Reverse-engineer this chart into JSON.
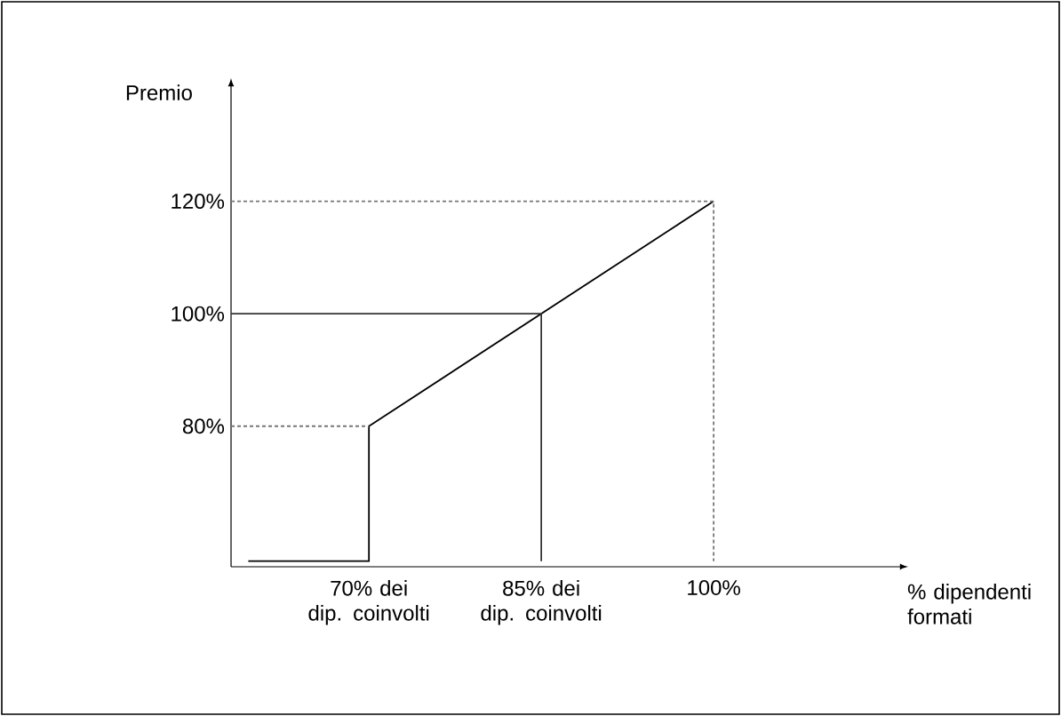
{
  "chart_data": {
    "type": "line",
    "xlabel": "% dipendenti formati",
    "ylabel": "Premio",
    "xlim": [
      58,
      116
    ],
    "ylim": [
      55,
      140
    ],
    "xticks": [
      {
        "value": 70,
        "label": "70% dei dip. coinvolti"
      },
      {
        "value": 85,
        "label": "85% dei dip. coinvolti"
      },
      {
        "value": 100,
        "label": "100%"
      }
    ],
    "yticks": [
      {
        "value": 80,
        "label": "80%"
      },
      {
        "value": 100,
        "label": "100%"
      },
      {
        "value": 120,
        "label": "120%"
      }
    ],
    "series": [
      {
        "color": "#000000",
        "x": [
          59.5,
          70,
          70,
          100
        ],
        "values": [
          56,
          56,
          80,
          120
        ],
        "line_style": "solid"
      },
      {
        "color": "#777777",
        "x": [
          58,
          70,
          null,
          58,
          100,
          100
        ],
        "values": [
          80,
          80,
          null,
          120,
          120,
          56
        ],
        "line_style": "dashed"
      },
      {
        "color": "#333333",
        "x": [
          58,
          85,
          85
        ],
        "values": [
          100,
          100,
          56
        ],
        "line_style": "solid"
      }
    ]
  }
}
